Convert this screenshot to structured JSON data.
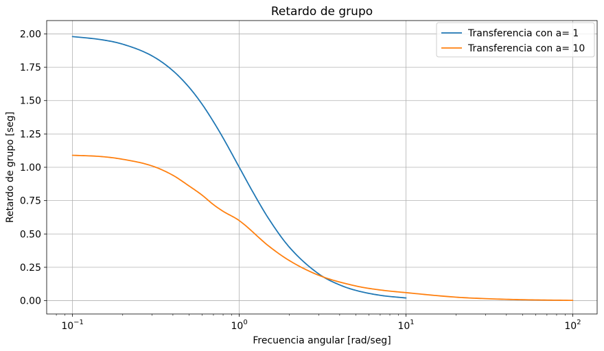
{
  "chart_data": {
    "type": "line",
    "title": "Retardo de grupo",
    "xlabel": "Frecuencia angular [rad/seg]",
    "ylabel": "Retardo de grupo [seg]",
    "xscale": "log",
    "xlim": [
      0.07,
      140
    ],
    "ylim": [
      -0.1,
      2.1
    ],
    "xticks": [
      {
        "value": 0.1,
        "base": "10",
        "exp": "−1"
      },
      {
        "value": 1,
        "base": "10",
        "exp": "0"
      },
      {
        "value": 10,
        "base": "10",
        "exp": "1"
      },
      {
        "value": 100,
        "base": "10",
        "exp": "2"
      }
    ],
    "yticks": [
      {
        "value": 0,
        "label": "0.00"
      },
      {
        "value": 0.25,
        "label": "0.25"
      },
      {
        "value": 0.5,
        "label": "0.50"
      },
      {
        "value": 0.75,
        "label": "0.75"
      },
      {
        "value": 1.0,
        "label": "1.00"
      },
      {
        "value": 1.25,
        "label": "1.25"
      },
      {
        "value": 1.5,
        "label": "1.50"
      },
      {
        "value": 1.75,
        "label": "1.75"
      },
      {
        "value": 2.0,
        "label": "2.00"
      }
    ],
    "grid": true,
    "legend_position": "top-right",
    "series": [
      {
        "name": "Transferencia con a= 1",
        "color": "#1f77b4",
        "x": [
          0.1,
          0.15,
          0.2,
          0.3,
          0.4,
          0.5,
          0.6,
          0.7,
          0.8,
          1.0,
          1.2,
          1.5,
          2.0,
          3.0,
          4.0,
          5.0,
          7.0,
          10.0
        ],
        "y": [
          1.98,
          1.956,
          1.923,
          1.835,
          1.724,
          1.6,
          1.471,
          1.342,
          1.22,
          1.0,
          0.82,
          0.615,
          0.4,
          0.2,
          0.118,
          0.077,
          0.04,
          0.02
        ]
      },
      {
        "name": "Transferencia con a= 10",
        "color": "#ff7f0e",
        "x": [
          0.1,
          0.15,
          0.2,
          0.3,
          0.4,
          0.5,
          0.6,
          0.7,
          0.8,
          1.0,
          1.5,
          2.0,
          3.0,
          5.0,
          7.0,
          10.0,
          20.0,
          30.0,
          50.0,
          100.0
        ],
        "y": [
          1.09,
          1.08,
          1.06,
          1.01,
          0.94,
          0.86,
          0.79,
          0.72,
          0.67,
          0.6,
          0.41,
          0.3,
          0.19,
          0.11,
          0.08,
          0.06,
          0.026,
          0.015,
          0.007,
          0.002
        ]
      }
    ]
  }
}
